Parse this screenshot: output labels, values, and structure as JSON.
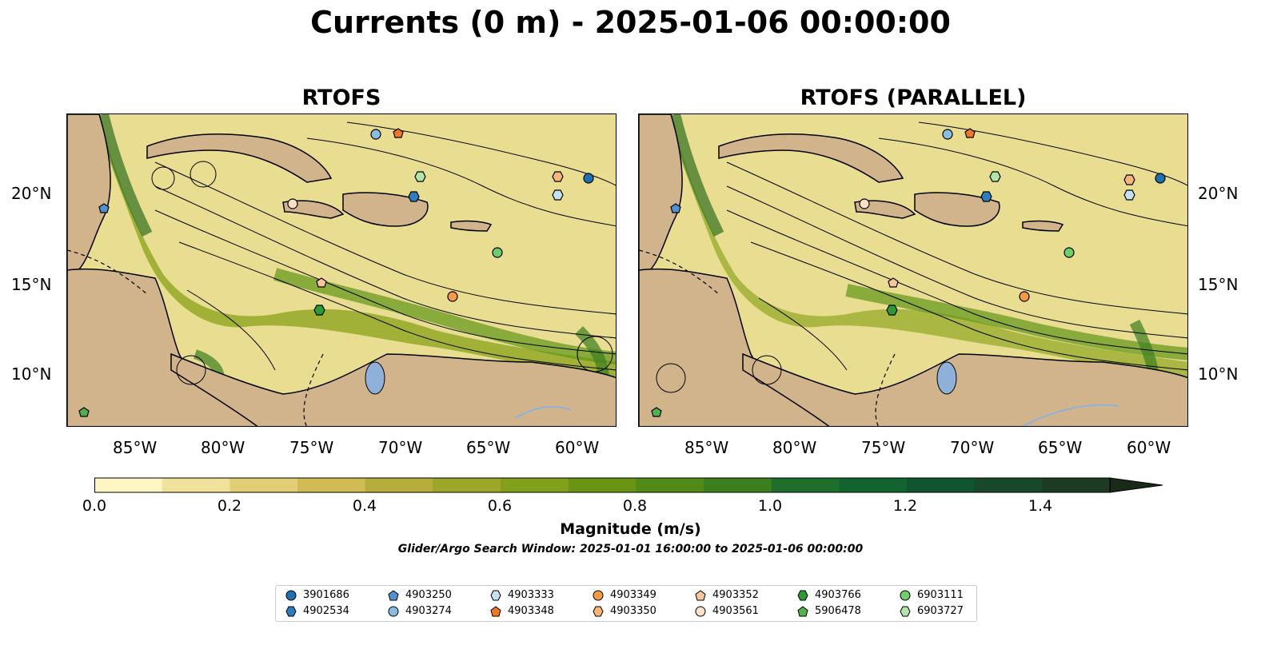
{
  "figure": {
    "title": "Currents (0 m) - 2025-01-06 00:00:00",
    "panels": [
      {
        "title": "RTOFS"
      },
      {
        "title": "RTOFS (PARALLEL)"
      }
    ],
    "lon_ticks": [
      "85°W",
      "80°W",
      "75°W",
      "70°W",
      "65°W",
      "60°W"
    ],
    "lat_ticks": [
      "20°N",
      "15°N",
      "10°N"
    ],
    "colorbar": {
      "label": "Magnitude (m/s)",
      "ticks": [
        "0.0",
        "0.2",
        "0.4",
        "0.6",
        "0.8",
        "1.0",
        "1.2",
        "1.4"
      ],
      "colors": [
        "#fdf6c3",
        "#f0e29a",
        "#e2cf75",
        "#d1bb55",
        "#b7ad3c",
        "#9ea62a",
        "#83a01c",
        "#6a9514",
        "#528a18",
        "#3c7f1f",
        "#1f6e2b",
        "#136331",
        "#0f5530",
        "#17482a",
        "#1d3b22",
        "#1a2a18"
      ]
    },
    "search_window": "Glider/Argo Search Window: 2025-01-01 16:00:00 to 2025-01-06 00:00:00",
    "land_color": "#d2b48c",
    "water_color": "#8fb1d9"
  },
  "legend": [
    {
      "label": "3901686",
      "marker": "circle",
      "color": "#1f6fb2"
    },
    {
      "label": "4902534",
      "marker": "hexagon",
      "color": "#2e7ebf"
    },
    {
      "label": "4903250",
      "marker": "pentagon",
      "color": "#4f92cf"
    },
    {
      "label": "4903274",
      "marker": "circle",
      "color": "#8bbde3"
    },
    {
      "label": "4903333",
      "marker": "hexagon",
      "color": "#c6e1f2"
    },
    {
      "label": "4903348",
      "marker": "pentagon",
      "color": "#f0781e"
    },
    {
      "label": "4903349",
      "marker": "circle",
      "color": "#f69a45"
    },
    {
      "label": "4903350",
      "marker": "hexagon",
      "color": "#f8b57a"
    },
    {
      "label": "4903352",
      "marker": "pentagon",
      "color": "#f9c59c"
    },
    {
      "label": "4903561",
      "marker": "circle",
      "color": "#fde0c5"
    },
    {
      "label": "4903766",
      "marker": "hexagon",
      "color": "#2e9a33"
    },
    {
      "label": "5906478",
      "marker": "pentagon",
      "color": "#52b04f"
    },
    {
      "label": "6903111",
      "marker": "circle",
      "color": "#6fcd6a"
    },
    {
      "label": "6903727",
      "marker": "hexagon",
      "color": "#b3e6a6"
    }
  ]
}
